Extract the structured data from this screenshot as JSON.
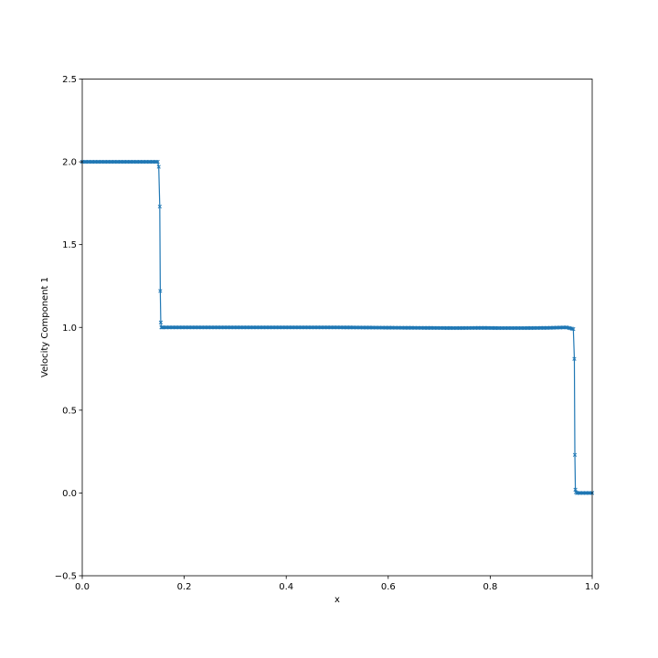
{
  "chart_data": {
    "type": "line",
    "title": "",
    "xlabel": "x",
    "ylabel": "Velocity Component 1",
    "xlim": [
      0.0,
      1.0
    ],
    "ylim": [
      -0.5,
      2.5
    ],
    "xticks": [
      0.0,
      0.2,
      0.4,
      0.6,
      0.8,
      1.0
    ],
    "xtick_labels": [
      "0.0",
      "0.2",
      "0.4",
      "0.6",
      "0.8",
      "1.0"
    ],
    "yticks": [
      -0.5,
      0.0,
      0.5,
      1.0,
      1.5,
      2.0,
      2.5
    ],
    "ytick_labels": [
      "−0.5",
      "0.0",
      "0.5",
      "1.0",
      "1.5",
      "2.0",
      "2.5"
    ],
    "grid": false,
    "legend": "none",
    "series_color": "#1f77b4",
    "marker": "x",
    "series": [
      {
        "x": [
          0.0,
          0.148,
          0.15,
          0.152,
          0.153,
          0.154,
          0.155,
          0.156,
          0.158,
          0.16,
          0.5,
          0.73,
          0.786,
          0.815,
          0.87,
          0.91,
          0.95,
          0.963,
          0.965,
          0.966,
          0.967,
          0.968,
          0.97,
          0.972,
          1.0
        ],
        "y": [
          2.0,
          2.0,
          1.97,
          1.73,
          1.22,
          1.03,
          1.0,
          1.0,
          1.0,
          1.0,
          1.0,
          0.996,
          0.997,
          0.996,
          0.996,
          0.997,
          1.0,
          0.99,
          0.81,
          0.23,
          0.02,
          0.005,
          0.0,
          0.0,
          0.0
        ]
      }
    ]
  }
}
